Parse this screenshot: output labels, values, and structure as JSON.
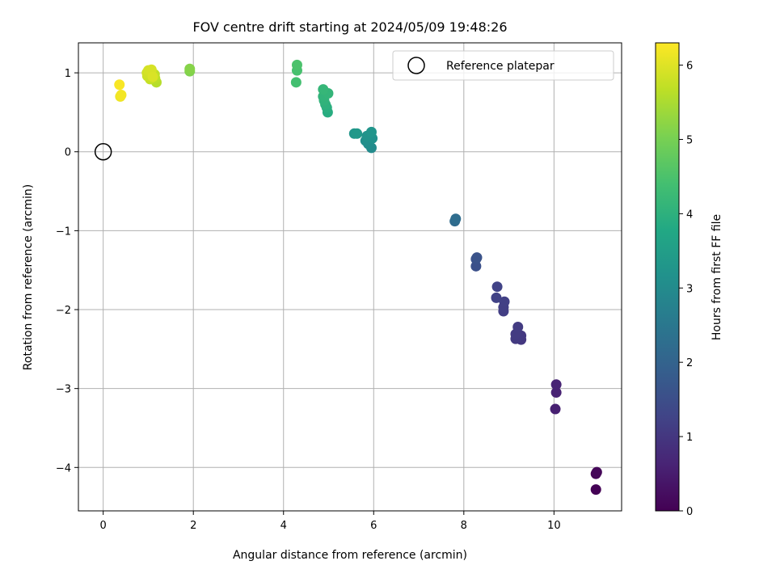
{
  "chart_data": {
    "type": "scatter",
    "title": "FOV centre drift starting at 2024/05/09 19:48:26",
    "xlabel": "Angular distance from reference (arcmin)",
    "ylabel": "Rotation from reference (arcmin)",
    "xlim": [
      -0.55,
      11.5
    ],
    "ylim": [
      -4.55,
      1.38
    ],
    "xticks": [
      0,
      2,
      4,
      6,
      8,
      10
    ],
    "yticks": [
      -4,
      -3,
      -2,
      -1,
      0,
      1
    ],
    "xtick_labels": [
      "0",
      "2",
      "4",
      "6",
      "8",
      "10"
    ],
    "ytick_labels": [
      "−4",
      "−3",
      "−2",
      "−1",
      "0",
      "1"
    ],
    "grid": true,
    "legend": {
      "position": "top-right",
      "label": "Reference platepar"
    },
    "reference_point": {
      "x": 0,
      "y": 0
    },
    "colorbar": {
      "label": "Hours from first FF file",
      "range": [
        0,
        6.3
      ],
      "ticks": [
        0,
        1,
        2,
        3,
        4,
        5,
        6
      ],
      "tick_labels": [
        "0",
        "1",
        "2",
        "3",
        "4",
        "5",
        "6"
      ],
      "colormap": "viridis"
    },
    "points": [
      {
        "x": 10.93,
        "y": -4.28,
        "h": 0.02
      },
      {
        "x": 10.93,
        "y": -4.08,
        "h": 0.06
      },
      {
        "x": 10.95,
        "y": -4.06,
        "h": 0.1
      },
      {
        "x": 10.03,
        "y": -3.26,
        "h": 0.55
      },
      {
        "x": 10.05,
        "y": -3.05,
        "h": 0.6
      },
      {
        "x": 10.05,
        "y": -2.95,
        "h": 0.63
      },
      {
        "x": 9.27,
        "y": -2.38,
        "h": 1.0
      },
      {
        "x": 9.27,
        "y": -2.33,
        "h": 1.02
      },
      {
        "x": 9.2,
        "y": -2.35,
        "h": 1.04
      },
      {
        "x": 9.15,
        "y": -2.37,
        "h": 1.06
      },
      {
        "x": 9.15,
        "y": -2.31,
        "h": 1.08
      },
      {
        "x": 9.2,
        "y": -2.22,
        "h": 1.1
      },
      {
        "x": 8.88,
        "y": -2.02,
        "h": 1.15
      },
      {
        "x": 8.88,
        "y": -1.97,
        "h": 1.17
      },
      {
        "x": 8.9,
        "y": -1.9,
        "h": 1.19
      },
      {
        "x": 8.72,
        "y": -1.85,
        "h": 1.22
      },
      {
        "x": 8.74,
        "y": -1.71,
        "h": 1.25
      },
      {
        "x": 8.27,
        "y": -1.45,
        "h": 1.55
      },
      {
        "x": 8.27,
        "y": -1.36,
        "h": 1.58
      },
      {
        "x": 8.29,
        "y": -1.34,
        "h": 1.6
      },
      {
        "x": 7.8,
        "y": -0.88,
        "h": 2.2
      },
      {
        "x": 7.82,
        "y": -0.85,
        "h": 2.25
      },
      {
        "x": 5.95,
        "y": 0.05,
        "h": 3.0
      },
      {
        "x": 5.88,
        "y": 0.1,
        "h": 3.05
      },
      {
        "x": 5.82,
        "y": 0.14,
        "h": 3.1
      },
      {
        "x": 5.97,
        "y": 0.17,
        "h": 3.15
      },
      {
        "x": 5.85,
        "y": 0.2,
        "h": 3.2
      },
      {
        "x": 5.95,
        "y": 0.25,
        "h": 3.25
      },
      {
        "x": 5.57,
        "y": 0.23,
        "h": 3.3
      },
      {
        "x": 5.63,
        "y": 0.23,
        "h": 3.35
      },
      {
        "x": 4.98,
        "y": 0.5,
        "h": 3.9
      },
      {
        "x": 4.96,
        "y": 0.56,
        "h": 3.95
      },
      {
        "x": 4.93,
        "y": 0.6,
        "h": 4.0
      },
      {
        "x": 4.9,
        "y": 0.65,
        "h": 4.05
      },
      {
        "x": 4.88,
        "y": 0.7,
        "h": 4.08
      },
      {
        "x": 4.99,
        "y": 0.74,
        "h": 4.12
      },
      {
        "x": 4.88,
        "y": 0.79,
        "h": 4.15
      },
      {
        "x": 4.28,
        "y": 0.88,
        "h": 4.4
      },
      {
        "x": 4.3,
        "y": 1.03,
        "h": 4.45
      },
      {
        "x": 4.3,
        "y": 1.1,
        "h": 4.5
      },
      {
        "x": 1.92,
        "y": 1.02,
        "h": 5.1
      },
      {
        "x": 1.92,
        "y": 1.05,
        "h": 5.15
      },
      {
        "x": 1.18,
        "y": 0.88,
        "h": 5.6
      },
      {
        "x": 1.15,
        "y": 0.93,
        "h": 5.65
      },
      {
        "x": 1.14,
        "y": 0.98,
        "h": 5.7
      },
      {
        "x": 1.04,
        "y": 0.92,
        "h": 5.75
      },
      {
        "x": 0.98,
        "y": 0.96,
        "h": 5.8
      },
      {
        "x": 0.97,
        "y": 1.0,
        "h": 5.85
      },
      {
        "x": 1.0,
        "y": 1.03,
        "h": 5.9
      },
      {
        "x": 1.07,
        "y": 1.04,
        "h": 5.92
      },
      {
        "x": 1.1,
        "y": 0.95,
        "h": 5.95
      },
      {
        "x": 0.38,
        "y": 0.7,
        "h": 6.15
      },
      {
        "x": 0.4,
        "y": 0.72,
        "h": 6.2
      },
      {
        "x": 0.36,
        "y": 0.85,
        "h": 6.25
      }
    ]
  }
}
